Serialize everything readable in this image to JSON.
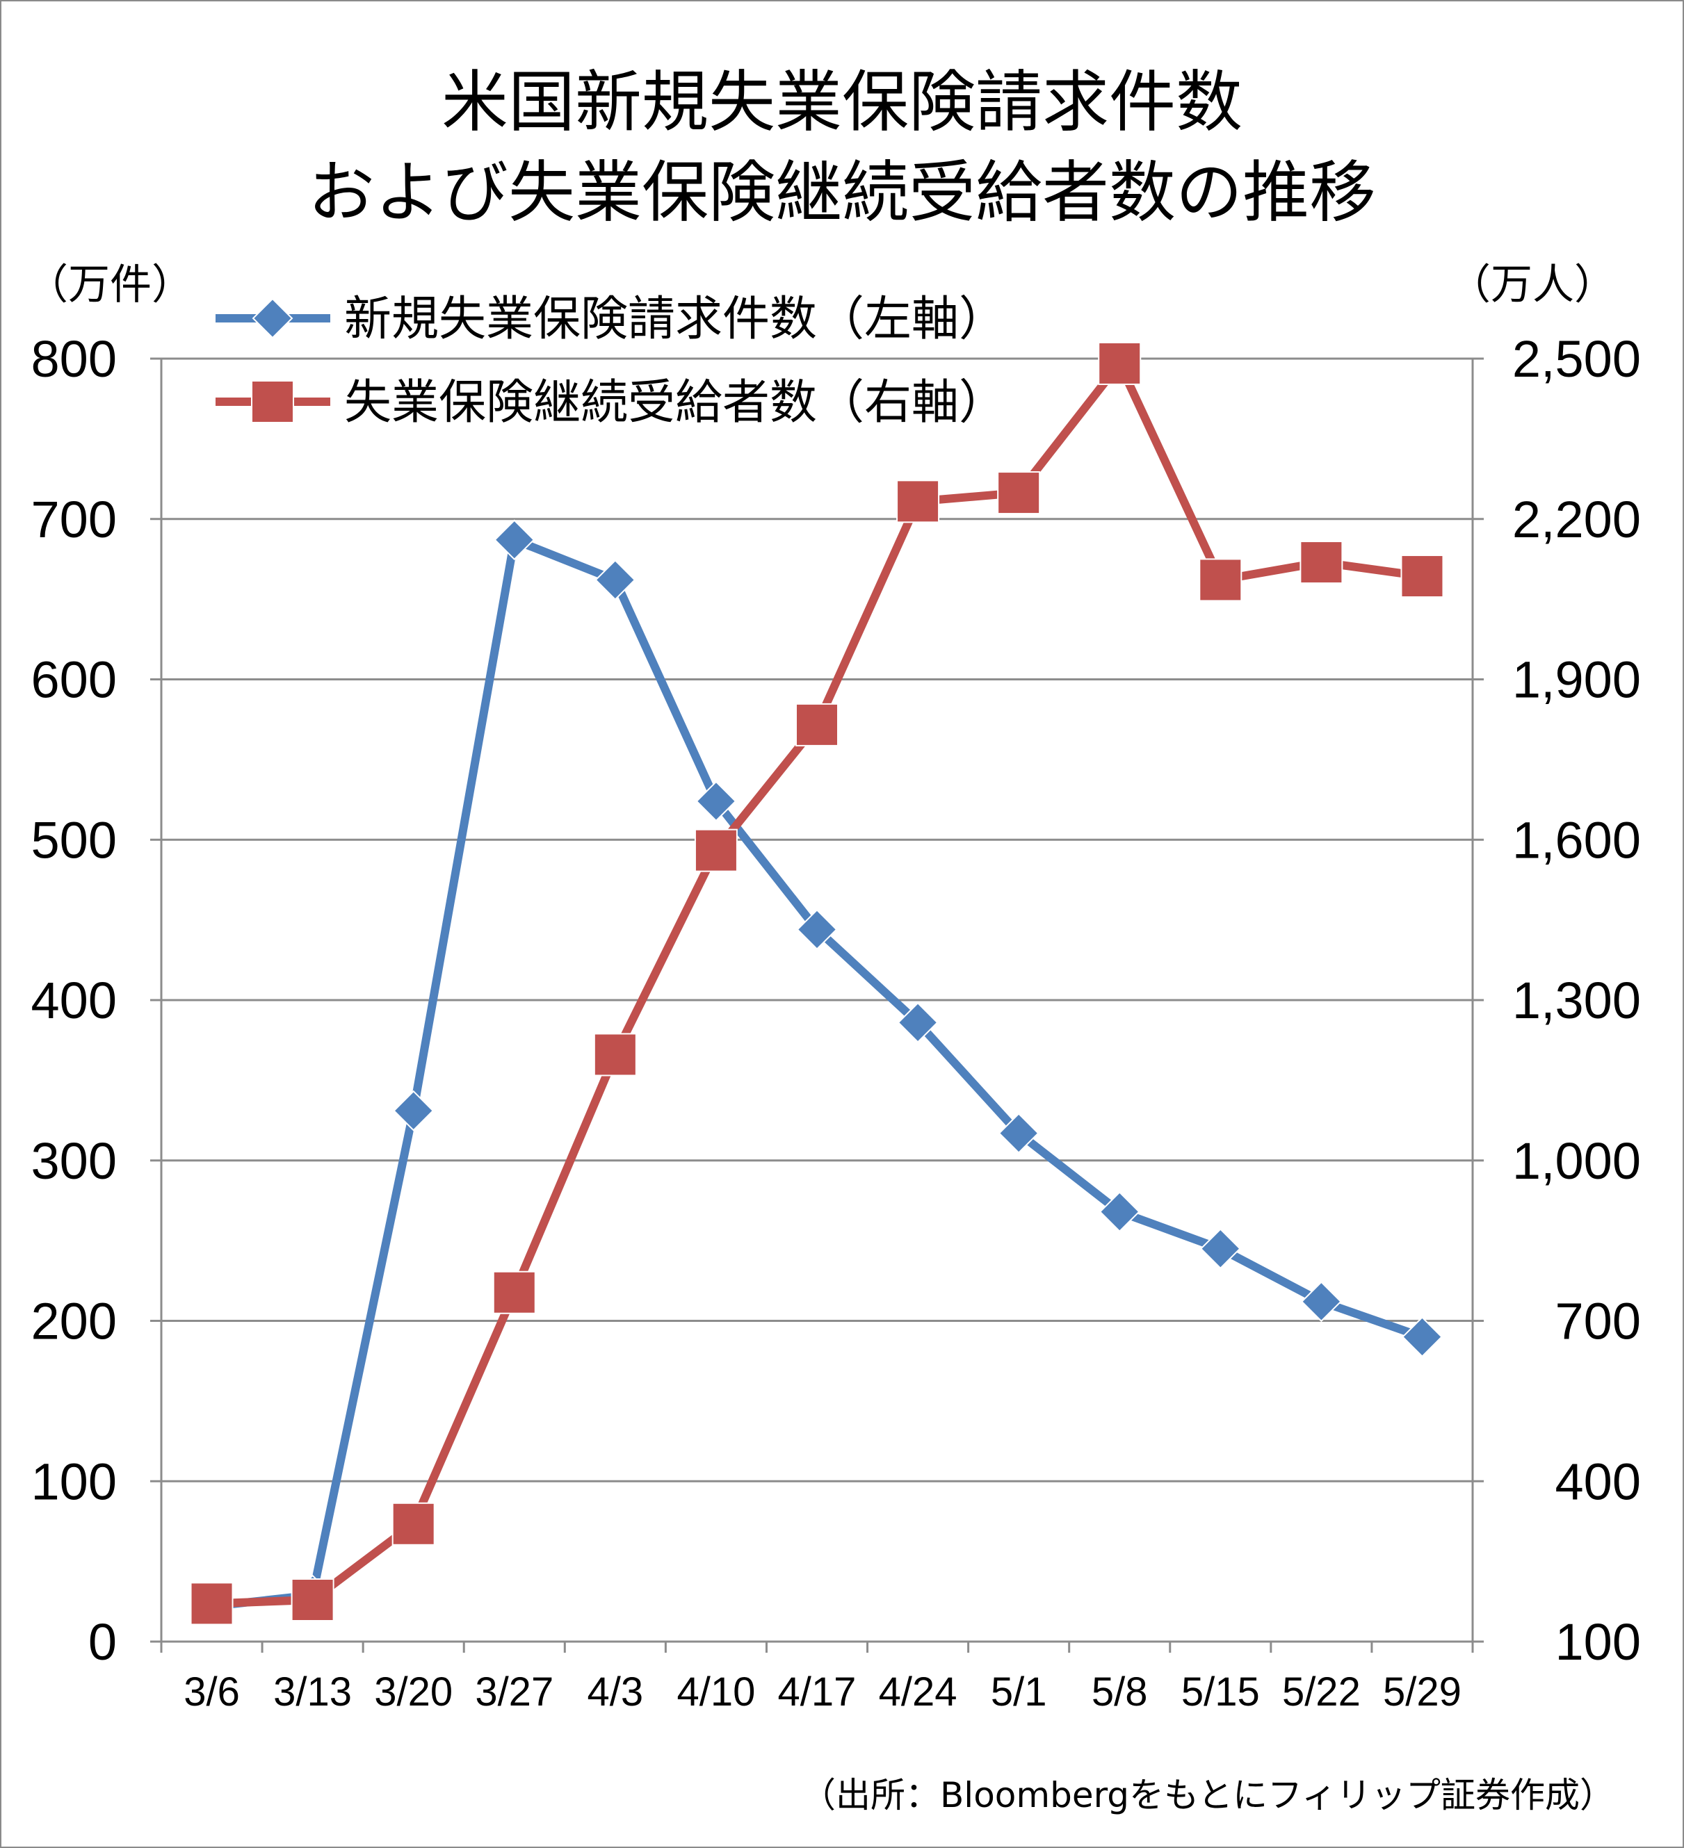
{
  "chart_data": {
    "type": "line",
    "title_lines": [
      "米国新規失業保険請求件数",
      "および失業保険継続受給者数の推移"
    ],
    "categories": [
      "3/6",
      "3/13",
      "3/20",
      "3/27",
      "4/3",
      "4/10",
      "4/17",
      "4/24",
      "5/1",
      "5/8",
      "5/15",
      "5/22",
      "5/29"
    ],
    "left_axis": {
      "unit": "（万件）",
      "min": 0,
      "max": 800,
      "ticks": [
        "0",
        "100",
        "200",
        "300",
        "400",
        "500",
        "600",
        "700",
        "800"
      ]
    },
    "right_axis": {
      "unit": "（万人）",
      "min": 100,
      "max": 2500,
      "ticks": [
        "100",
        "400",
        "700",
        "1,000",
        "1,300",
        "1,600",
        "1,900",
        "2,200",
        "2,500"
      ]
    },
    "series": [
      {
        "name": "新規失業保険請求件数（左軸）",
        "axis": "left",
        "color": "#4f81bd",
        "marker": "diamond",
        "values": [
          22,
          29,
          331,
          687,
          662,
          524,
          444,
          386,
          317,
          268,
          245,
          212,
          190
        ]
      },
      {
        "name": "失業保険継続受給者数（右軸）",
        "axis": "right",
        "color": "#c0504d",
        "marker": "square",
        "values": [
          171,
          178,
          320,
          753,
          1198,
          1580,
          1815,
          2233,
          2249,
          2491,
          2086,
          2119,
          2093
        ]
      }
    ],
    "grid": true,
    "legend_position": "top-left",
    "source": "（出所：Bloombergをもとにフィリップ証券作成）"
  }
}
